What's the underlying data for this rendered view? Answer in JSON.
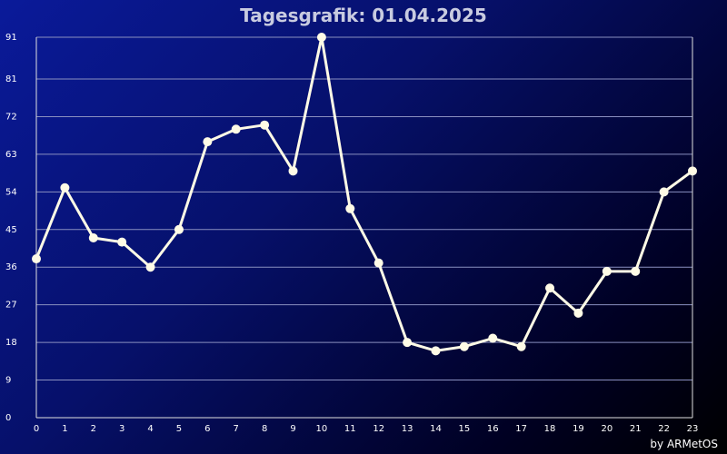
{
  "chart_data": {
    "type": "line",
    "title": "Tagesgrafik: 01.04.2025",
    "xlabel": "",
    "ylabel": "",
    "x": [
      0,
      1,
      2,
      3,
      4,
      5,
      6,
      7,
      8,
      9,
      10,
      11,
      12,
      13,
      14,
      15,
      16,
      17,
      18,
      19,
      20,
      21,
      22,
      23
    ],
    "x_tick_labels": [
      "0",
      "1",
      "2",
      "3",
      "4",
      "5",
      "6",
      "7",
      "8",
      "9",
      "10",
      "11",
      "12",
      "13",
      "14",
      "15",
      "16",
      "17",
      "18",
      "19",
      "20",
      "21",
      "22",
      "23"
    ],
    "series": [
      {
        "values": [
          38,
          55,
          43,
          42,
          36,
          45,
          66,
          69,
          70,
          59,
          91,
          50,
          37,
          18,
          16,
          17,
          19,
          17,
          31,
          25,
          35,
          35,
          54,
          59
        ]
      }
    ],
    "xlim": [
      0,
      23
    ],
    "ylim": [
      0,
      91
    ],
    "y_ticks": [
      0,
      9,
      18,
      27,
      36,
      45,
      54,
      63,
      72,
      81,
      91
    ],
    "y_tick_labels": [
      "0",
      "9",
      "18",
      "27",
      "36",
      "45",
      "54",
      "63",
      "72",
      "81",
      "91"
    ],
    "grid": "horizontal",
    "credit": "by ARMetOS",
    "colors": {
      "line": "#fffbe6",
      "marker": "#fffbe6",
      "grid": "#8a90c0",
      "axis": "#e0e0e0"
    }
  }
}
